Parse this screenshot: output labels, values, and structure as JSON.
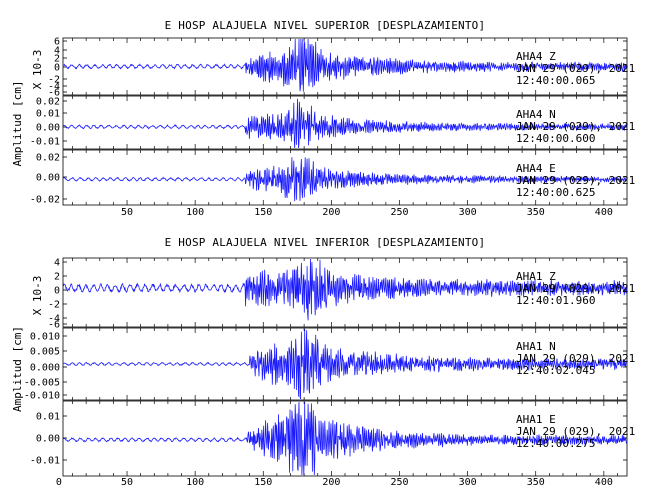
{
  "figures": [
    {
      "title": "E HOSP ALAJUELA NIVEL SUPERIOR [DESPLAZAMIENTO]",
      "ylabel_top": "X 10-3",
      "ylabel_main": "Amplitud [cm]",
      "x_ticks": [
        "50",
        "100",
        "150",
        "200",
        "250",
        "300",
        "350",
        "400"
      ],
      "traces": [
        {
          "station": "AHA4",
          "component": "Z",
          "date": "JAN 29 (029), 2021",
          "time": "12:40:00.065",
          "y_ticks": [
            "6",
            "4",
            "2",
            "0",
            "-2",
            "-4",
            "-6"
          ]
        },
        {
          "station": "AHA4",
          "component": "N",
          "date": "JAN 29 (029), 2021",
          "time": "12:40:00.600",
          "y_ticks": [
            "0.02",
            "0.01",
            "0.00",
            "-0.01"
          ]
        },
        {
          "station": "AHA4",
          "component": "E",
          "date": "JAN 29 (029), 2021",
          "time": "12:40:00.625",
          "y_ticks": [
            "0.02",
            "0.00",
            "-0.02"
          ]
        }
      ]
    },
    {
      "title": "E HOSP ALAJUELA NIVEL INFERIOR [DESPLAZAMIENTO]",
      "ylabel_top": "X 10-3",
      "ylabel_main": "Amplitud [cm]",
      "x_ticks": [
        "0",
        "50",
        "100",
        "150",
        "200",
        "250",
        "300",
        "350",
        "400"
      ],
      "traces": [
        {
          "station": "AHA1",
          "component": "Z",
          "date": "JAN 29 (029), 2021",
          "time": "12:40:01.960",
          "y_ticks": [
            "4",
            "2",
            "0",
            "-2",
            "-4",
            "-6"
          ]
        },
        {
          "station": "AHA1",
          "component": "N",
          "date": "JAN 29 (029), 2021",
          "time": "12:40:02.045",
          "y_ticks": [
            "0.010",
            "0.005",
            "0.000",
            "-0.005",
            "-0.010"
          ]
        },
        {
          "station": "AHA1",
          "component": "E",
          "date": "JAN 29 (029), 2021",
          "time": "12:40:00.275",
          "y_ticks": [
            "0.01",
            "0.00",
            "-0.01"
          ]
        }
      ]
    }
  ],
  "chart_data": [
    {
      "type": "line",
      "title": "E HOSP ALAJUELA NIVEL SUPERIOR [DESPLAZAMIENTO]",
      "ylabel": "Amplitud [cm]",
      "xlim": [
        3,
        417
      ],
      "grid": false,
      "series_color": "#1a1aff",
      "series": [
        {
          "name": "AHA4 Z",
          "ylim": [
            -6.5,
            6.5
          ],
          "unit_scale": "X 10-3",
          "envelope": {
            "pre_event_amp": 0.5,
            "onset_s": 137,
            "onset_amp": 2.0,
            "peak_s": 178,
            "peak_amp": 6.5,
            "coda_amp": 0.8
          }
        },
        {
          "name": "AHA4 N",
          "ylim": [
            -0.018,
            0.025
          ],
          "envelope": {
            "pre_event_amp": 0.0015,
            "onset_s": 137,
            "onset_amp": 0.007,
            "peak_s": 177,
            "peak_amp": 0.018,
            "coda_amp": 0.002
          }
        },
        {
          "name": "AHA4 E",
          "ylim": [
            -0.022,
            0.025
          ],
          "envelope": {
            "pre_event_amp": 0.0015,
            "onset_s": 137,
            "onset_amp": 0.006,
            "peak_s": 177,
            "peak_amp": 0.019,
            "coda_amp": 0.002
          }
        }
      ]
    },
    {
      "type": "line",
      "title": "E HOSP ALAJUELA NIVEL INFERIOR [DESPLAZAMIENTO]",
      "ylabel": "Amplitud [cm]",
      "xlim": [
        3,
        417
      ],
      "grid": false,
      "series_color": "#1a1aff",
      "series": [
        {
          "name": "AHA1 Z",
          "ylim": [
            -6.5,
            5.0
          ],
          "unit_scale": "X 10-3",
          "envelope": {
            "pre_event_amp": 0.7,
            "onset_s": 137,
            "onset_amp": 2.5,
            "peak_s": 185,
            "peak_amp": 5.0,
            "coda_amp": 1.0
          }
        },
        {
          "name": "AHA1 N",
          "ylim": [
            -0.012,
            0.012
          ],
          "envelope": {
            "pre_event_amp": 0.0005,
            "onset_s": 140,
            "onset_amp": 0.004,
            "peak_s": 180,
            "peak_amp": 0.011,
            "coda_amp": 0.0015
          }
        },
        {
          "name": "AHA1 E",
          "ylim": [
            -0.015,
            0.016
          ],
          "envelope": {
            "pre_event_amp": 0.0008,
            "onset_s": 138,
            "onset_amp": 0.003,
            "peak_s": 178,
            "peak_amp": 0.016,
            "coda_amp": 0.0015
          }
        }
      ]
    }
  ]
}
